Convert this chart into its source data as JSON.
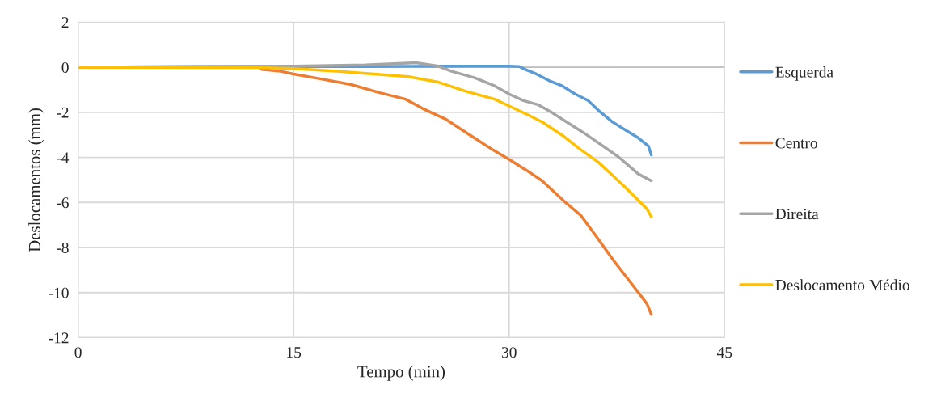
{
  "chart_data": {
    "type": "line",
    "xlabel": "Tempo (min)",
    "ylabel": "Deslocamentos (mm)",
    "xlim": [
      0,
      45
    ],
    "xticks": [
      0,
      15,
      30,
      45
    ],
    "ylim": [
      -12,
      2
    ],
    "yticks": [
      -12,
      -10,
      -8,
      -6,
      -4,
      -2,
      0,
      2
    ],
    "grid": true,
    "legend": "right",
    "marker": "none",
    "line_style": "solid",
    "series": [
      {
        "name": "Esquerda",
        "color": "#5b9bd5",
        "x": [
          0,
          10,
          20,
          25,
          30,
          30.7,
          31.2,
          31.9,
          32.8,
          33.7,
          34.6,
          35.5,
          36.3,
          37.2,
          38.1,
          39.0,
          39.7,
          39.9
        ],
        "values": [
          0,
          0.03,
          0.03,
          0.05,
          0.05,
          0.03,
          -0.12,
          -0.3,
          -0.6,
          -0.83,
          -1.19,
          -1.48,
          -1.96,
          -2.43,
          -2.79,
          -3.14,
          -3.5,
          -3.89
        ]
      },
      {
        "name": "Centro",
        "color": "#ed7d31",
        "x": [
          0,
          12.5,
          12.8,
          14.1,
          15,
          17,
          19,
          21,
          22.8,
          24,
          25.6,
          27.3,
          28.9,
          30,
          31.2,
          32.3,
          33.8,
          35,
          36.1,
          37.3,
          38.6,
          39.6,
          39.9
        ],
        "values": [
          0,
          0.02,
          -0.1,
          -0.18,
          -0.3,
          -0.53,
          -0.77,
          -1.13,
          -1.42,
          -1.84,
          -2.31,
          -3.02,
          -3.68,
          -4.09,
          -4.57,
          -5.04,
          -5.93,
          -6.58,
          -7.53,
          -8.6,
          -9.67,
          -10.5,
          -10.97
        ]
      },
      {
        "name": "Direita",
        "color": "#a5a5a5",
        "x": [
          0,
          15,
          20,
          23.5,
          25,
          26,
          27.6,
          29,
          30,
          31,
          32,
          33,
          34,
          35.2,
          36.4,
          37.6,
          39,
          39.9
        ],
        "values": [
          0,
          0.05,
          0.1,
          0.2,
          0.06,
          -0.18,
          -0.47,
          -0.83,
          -1.19,
          -1.48,
          -1.66,
          -2.02,
          -2.43,
          -2.91,
          -3.44,
          -3.97,
          -4.74,
          -5.04
        ]
      },
      {
        "name": "Deslocamento Médio",
        "color": "#ffc000",
        "x": [
          0,
          13,
          15,
          18,
          20.6,
          23,
          25,
          27,
          29,
          30,
          31.2,
          32.3,
          33.7,
          34.9,
          36.2,
          37.2,
          38.2,
          39.6,
          39.9
        ],
        "values": [
          0,
          -0.02,
          -0.06,
          -0.18,
          -0.3,
          -0.42,
          -0.65,
          -1.07,
          -1.42,
          -1.72,
          -2.08,
          -2.43,
          -3.02,
          -3.62,
          -4.21,
          -4.8,
          -5.4,
          -6.29,
          -6.64
        ]
      }
    ]
  }
}
